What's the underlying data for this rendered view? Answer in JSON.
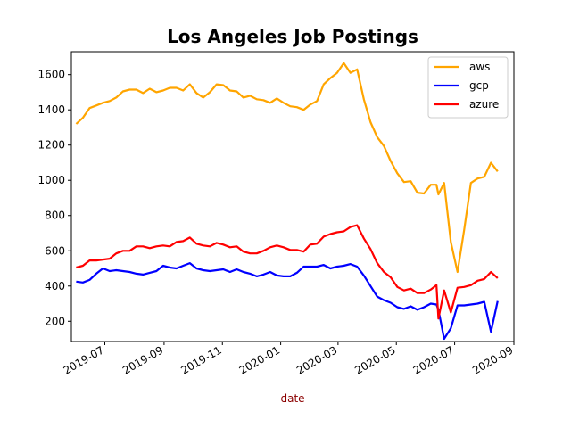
{
  "chart_data": {
    "type": "line",
    "title": "Los Angeles Job Postings",
    "xlabel": "date",
    "ylabel": "",
    "xlabel_color": "#8b0000",
    "x_ticks": [
      "2019-07",
      "2019-09",
      "2019-11",
      "2020-01",
      "2020-03",
      "2020-05",
      "2020-07",
      "2020-09"
    ],
    "x_range": [
      "2019-05-27",
      "2020-09-01"
    ],
    "y_ticks": [
      200,
      400,
      600,
      800,
      1000,
      1200,
      1400,
      1600
    ],
    "ylim": [
      85,
      1730
    ],
    "legend_position": "top-right",
    "grid": false,
    "series": [
      {
        "name": "aws",
        "color": "#ffa500",
        "points": [
          [
            "2019-06-01",
            1320
          ],
          [
            "2019-06-08",
            1355
          ],
          [
            "2019-06-15",
            1410
          ],
          [
            "2019-06-22",
            1425
          ],
          [
            "2019-06-29",
            1440
          ],
          [
            "2019-07-06",
            1450
          ],
          [
            "2019-07-13",
            1470
          ],
          [
            "2019-07-20",
            1505
          ],
          [
            "2019-07-27",
            1515
          ],
          [
            "2019-08-03",
            1515
          ],
          [
            "2019-08-10",
            1495
          ],
          [
            "2019-08-17",
            1520
          ],
          [
            "2019-08-24",
            1500
          ],
          [
            "2019-08-31",
            1510
          ],
          [
            "2019-09-07",
            1525
          ],
          [
            "2019-09-14",
            1525
          ],
          [
            "2019-09-21",
            1510
          ],
          [
            "2019-09-28",
            1545
          ],
          [
            "2019-10-05",
            1495
          ],
          [
            "2019-10-12",
            1470
          ],
          [
            "2019-10-19",
            1500
          ],
          [
            "2019-10-26",
            1545
          ],
          [
            "2019-11-02",
            1540
          ],
          [
            "2019-11-09",
            1510
          ],
          [
            "2019-11-16",
            1505
          ],
          [
            "2019-11-23",
            1470
          ],
          [
            "2019-11-30",
            1480
          ],
          [
            "2019-12-07",
            1460
          ],
          [
            "2019-12-14",
            1455
          ],
          [
            "2019-12-21",
            1440
          ],
          [
            "2019-12-28",
            1465
          ],
          [
            "2020-01-04",
            1440
          ],
          [
            "2020-01-11",
            1420
          ],
          [
            "2020-01-18",
            1415
          ],
          [
            "2020-01-25",
            1400
          ],
          [
            "2020-02-01",
            1430
          ],
          [
            "2020-02-08",
            1450
          ],
          [
            "2020-02-15",
            1545
          ],
          [
            "2020-02-22",
            1580
          ],
          [
            "2020-02-29",
            1610
          ],
          [
            "2020-03-07",
            1665
          ],
          [
            "2020-03-14",
            1610
          ],
          [
            "2020-03-21",
            1630
          ],
          [
            "2020-03-28",
            1460
          ],
          [
            "2020-04-04",
            1330
          ],
          [
            "2020-04-11",
            1245
          ],
          [
            "2020-04-18",
            1195
          ],
          [
            "2020-04-25",
            1110
          ],
          [
            "2020-05-02",
            1040
          ],
          [
            "2020-05-09",
            990
          ],
          [
            "2020-05-16",
            995
          ],
          [
            "2020-05-23",
            930
          ],
          [
            "2020-05-30",
            925
          ],
          [
            "2020-06-06",
            975
          ],
          [
            "2020-06-12",
            975
          ],
          [
            "2020-06-14",
            920
          ],
          [
            "2020-06-20",
            985
          ],
          [
            "2020-06-27",
            650
          ],
          [
            "2020-07-04",
            480
          ],
          [
            "2020-07-11",
            720
          ],
          [
            "2020-07-18",
            985
          ],
          [
            "2020-07-25",
            1010
          ],
          [
            "2020-08-01",
            1020
          ],
          [
            "2020-08-08",
            1100
          ],
          [
            "2020-08-15",
            1050
          ]
        ]
      },
      {
        "name": "gcp",
        "color": "#0000ff",
        "points": [
          [
            "2019-06-01",
            425
          ],
          [
            "2019-06-08",
            420
          ],
          [
            "2019-06-15",
            435
          ],
          [
            "2019-06-22",
            470
          ],
          [
            "2019-06-29",
            500
          ],
          [
            "2019-07-06",
            485
          ],
          [
            "2019-07-13",
            490
          ],
          [
            "2019-07-20",
            485
          ],
          [
            "2019-07-27",
            480
          ],
          [
            "2019-08-03",
            470
          ],
          [
            "2019-08-10",
            465
          ],
          [
            "2019-08-17",
            475
          ],
          [
            "2019-08-24",
            485
          ],
          [
            "2019-08-31",
            515
          ],
          [
            "2019-09-07",
            505
          ],
          [
            "2019-09-14",
            500
          ],
          [
            "2019-09-21",
            515
          ],
          [
            "2019-09-28",
            530
          ],
          [
            "2019-10-05",
            500
          ],
          [
            "2019-10-12",
            490
          ],
          [
            "2019-10-19",
            485
          ],
          [
            "2019-10-26",
            490
          ],
          [
            "2019-11-02",
            495
          ],
          [
            "2019-11-09",
            480
          ],
          [
            "2019-11-16",
            495
          ],
          [
            "2019-11-23",
            480
          ],
          [
            "2019-11-30",
            470
          ],
          [
            "2019-12-07",
            455
          ],
          [
            "2019-12-14",
            465
          ],
          [
            "2019-12-21",
            480
          ],
          [
            "2019-12-28",
            460
          ],
          [
            "2020-01-04",
            455
          ],
          [
            "2020-01-11",
            455
          ],
          [
            "2020-01-18",
            475
          ],
          [
            "2020-01-25",
            510
          ],
          [
            "2020-02-01",
            510
          ],
          [
            "2020-02-08",
            510
          ],
          [
            "2020-02-15",
            520
          ],
          [
            "2020-02-22",
            500
          ],
          [
            "2020-02-29",
            510
          ],
          [
            "2020-03-07",
            515
          ],
          [
            "2020-03-14",
            525
          ],
          [
            "2020-03-21",
            510
          ],
          [
            "2020-03-28",
            460
          ],
          [
            "2020-04-04",
            400
          ],
          [
            "2020-04-11",
            340
          ],
          [
            "2020-04-18",
            320
          ],
          [
            "2020-04-25",
            305
          ],
          [
            "2020-05-02",
            280
          ],
          [
            "2020-05-09",
            270
          ],
          [
            "2020-05-16",
            285
          ],
          [
            "2020-05-23",
            265
          ],
          [
            "2020-05-30",
            280
          ],
          [
            "2020-06-06",
            300
          ],
          [
            "2020-06-12",
            295
          ],
          [
            "2020-06-14",
            265
          ],
          [
            "2020-06-20",
            100
          ],
          [
            "2020-06-27",
            160
          ],
          [
            "2020-07-04",
            290
          ],
          [
            "2020-07-11",
            290
          ],
          [
            "2020-07-18",
            295
          ],
          [
            "2020-07-25",
            300
          ],
          [
            "2020-08-01",
            310
          ],
          [
            "2020-08-08",
            140
          ],
          [
            "2020-08-15",
            315
          ]
        ]
      },
      {
        "name": "azure",
        "color": "#ff0000",
        "points": [
          [
            "2019-06-01",
            505
          ],
          [
            "2019-06-08",
            515
          ],
          [
            "2019-06-15",
            545
          ],
          [
            "2019-06-22",
            545
          ],
          [
            "2019-06-29",
            550
          ],
          [
            "2019-07-06",
            555
          ],
          [
            "2019-07-13",
            585
          ],
          [
            "2019-07-20",
            600
          ],
          [
            "2019-07-27",
            600
          ],
          [
            "2019-08-03",
            625
          ],
          [
            "2019-08-10",
            625
          ],
          [
            "2019-08-17",
            615
          ],
          [
            "2019-08-24",
            625
          ],
          [
            "2019-08-31",
            630
          ],
          [
            "2019-09-07",
            625
          ],
          [
            "2019-09-14",
            650
          ],
          [
            "2019-09-21",
            655
          ],
          [
            "2019-09-28",
            675
          ],
          [
            "2019-10-05",
            640
          ],
          [
            "2019-10-12",
            630
          ],
          [
            "2019-10-19",
            625
          ],
          [
            "2019-10-26",
            645
          ],
          [
            "2019-11-02",
            635
          ],
          [
            "2019-11-09",
            620
          ],
          [
            "2019-11-16",
            625
          ],
          [
            "2019-11-23",
            595
          ],
          [
            "2019-11-30",
            585
          ],
          [
            "2019-12-07",
            585
          ],
          [
            "2019-12-14",
            600
          ],
          [
            "2019-12-21",
            620
          ],
          [
            "2019-12-28",
            630
          ],
          [
            "2020-01-04",
            620
          ],
          [
            "2020-01-11",
            605
          ],
          [
            "2020-01-18",
            605
          ],
          [
            "2020-01-25",
            595
          ],
          [
            "2020-02-01",
            635
          ],
          [
            "2020-02-08",
            640
          ],
          [
            "2020-02-15",
            680
          ],
          [
            "2020-02-22",
            695
          ],
          [
            "2020-02-29",
            705
          ],
          [
            "2020-03-07",
            710
          ],
          [
            "2020-03-14",
            735
          ],
          [
            "2020-03-21",
            745
          ],
          [
            "2020-03-28",
            670
          ],
          [
            "2020-04-04",
            610
          ],
          [
            "2020-04-11",
            530
          ],
          [
            "2020-04-18",
            480
          ],
          [
            "2020-04-25",
            450
          ],
          [
            "2020-05-02",
            395
          ],
          [
            "2020-05-09",
            375
          ],
          [
            "2020-05-16",
            385
          ],
          [
            "2020-05-23",
            360
          ],
          [
            "2020-05-30",
            360
          ],
          [
            "2020-06-06",
            380
          ],
          [
            "2020-06-12",
            405
          ],
          [
            "2020-06-14",
            215
          ],
          [
            "2020-06-20",
            375
          ],
          [
            "2020-06-27",
            250
          ],
          [
            "2020-07-04",
            390
          ],
          [
            "2020-07-11",
            395
          ],
          [
            "2020-07-18",
            405
          ],
          [
            "2020-07-25",
            430
          ],
          [
            "2020-08-01",
            440
          ],
          [
            "2020-08-08",
            480
          ],
          [
            "2020-08-15",
            445
          ]
        ]
      }
    ]
  }
}
